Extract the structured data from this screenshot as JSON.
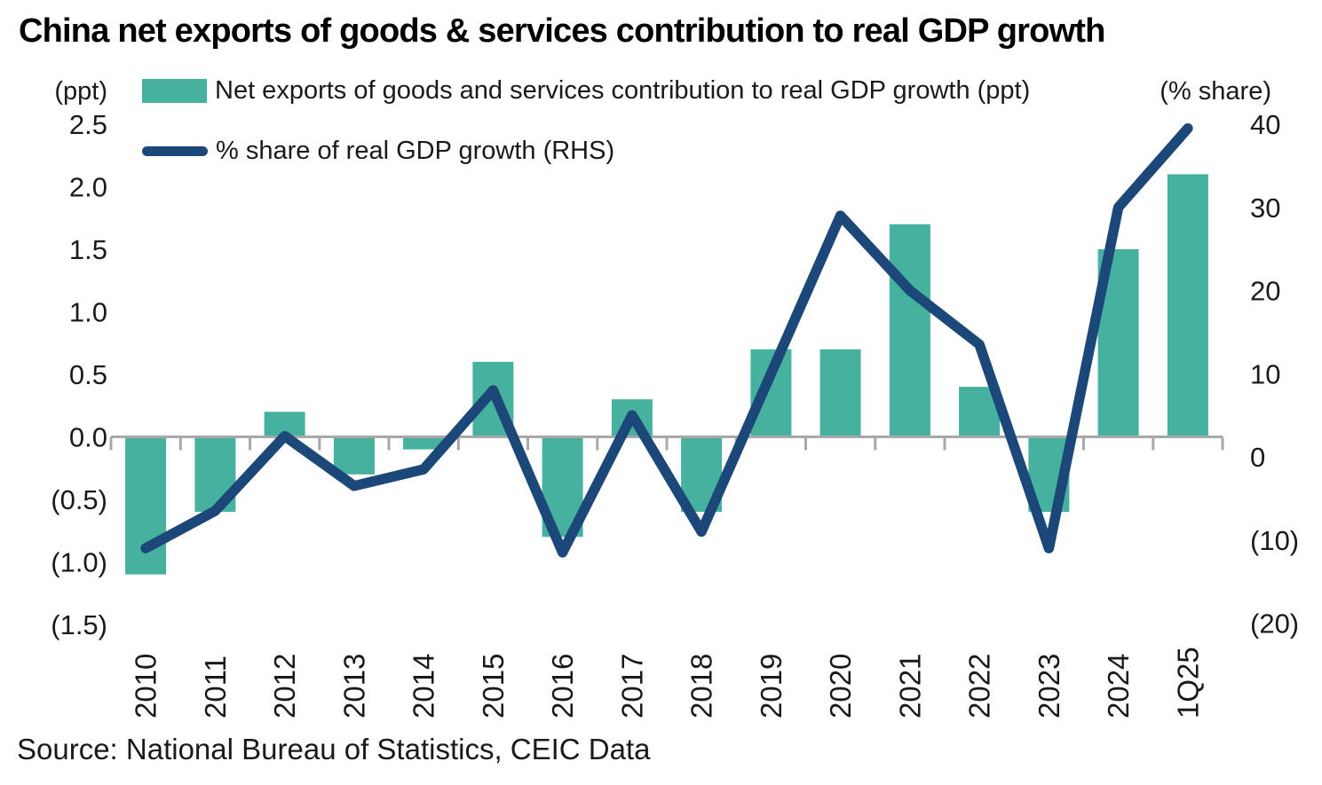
{
  "title": "China net exports of goods & services contribution to real GDP growth",
  "source": "Source: National Bureau of Statistics, CEIC Data",
  "legend": {
    "bar_label": "Net exports of goods and services contribution to real GDP growth (ppt)",
    "line_label": "% share of real GDP growth (RHS)"
  },
  "axes": {
    "left_unit": "(ppt)",
    "right_unit": "(% share)"
  },
  "colors": {
    "bar": "#45B19E",
    "line": "#1B4878",
    "axis": "#A8A8A8",
    "text": "#1A1A1A"
  },
  "chart_data": {
    "type": "bar",
    "subtype": "dual-axis combo (bar + line)",
    "title": "China net exports of goods & services contribution to real GDP growth",
    "categories": [
      "2010",
      "2011",
      "2012",
      "2013",
      "2014",
      "2015",
      "2016",
      "2017",
      "2018",
      "2019",
      "2020",
      "2021",
      "2022",
      "2023",
      "2024",
      "1Q25"
    ],
    "series": [
      {
        "name": "Net exports of goods and services contribution to real GDP growth (ppt)",
        "type": "bar",
        "axis": "left",
        "values": [
          -1.1,
          -0.6,
          0.2,
          -0.3,
          -0.1,
          0.6,
          -0.8,
          0.3,
          -0.6,
          0.7,
          0.7,
          1.7,
          0.4,
          -0.6,
          1.5,
          2.1
        ]
      },
      {
        "name": "% share of real GDP growth (RHS)",
        "type": "line",
        "axis": "right",
        "values": [
          -11,
          -6.5,
          2.5,
          -3.5,
          -1.5,
          8,
          -11.5,
          5,
          -9,
          10,
          29,
          20,
          13.5,
          -11,
          30,
          39.5
        ]
      }
    ],
    "left_axis": {
      "label": "(ppt)",
      "min": -1.5,
      "max": 2.5,
      "tick_step": 0.5,
      "ticks": [
        2.5,
        2.0,
        1.5,
        1.0,
        0.5,
        0.0,
        -0.5,
        -1.0,
        -1.5
      ],
      "tick_labels": [
        "2.5",
        "2.0",
        "1.5",
        "1.0",
        "0.5",
        "0.0",
        "(0.5)",
        "(1.0)",
        "(1.5)"
      ]
    },
    "right_axis": {
      "label": "(% share)",
      "min": -20,
      "max": 40,
      "tick_step": 10,
      "ticks": [
        40,
        30,
        20,
        10,
        0,
        -10,
        -20
      ],
      "tick_labels": [
        "40",
        "30",
        "20",
        "10",
        "0",
        "(10)",
        "(20)"
      ]
    },
    "grid": false,
    "legend_position": "top-left"
  }
}
